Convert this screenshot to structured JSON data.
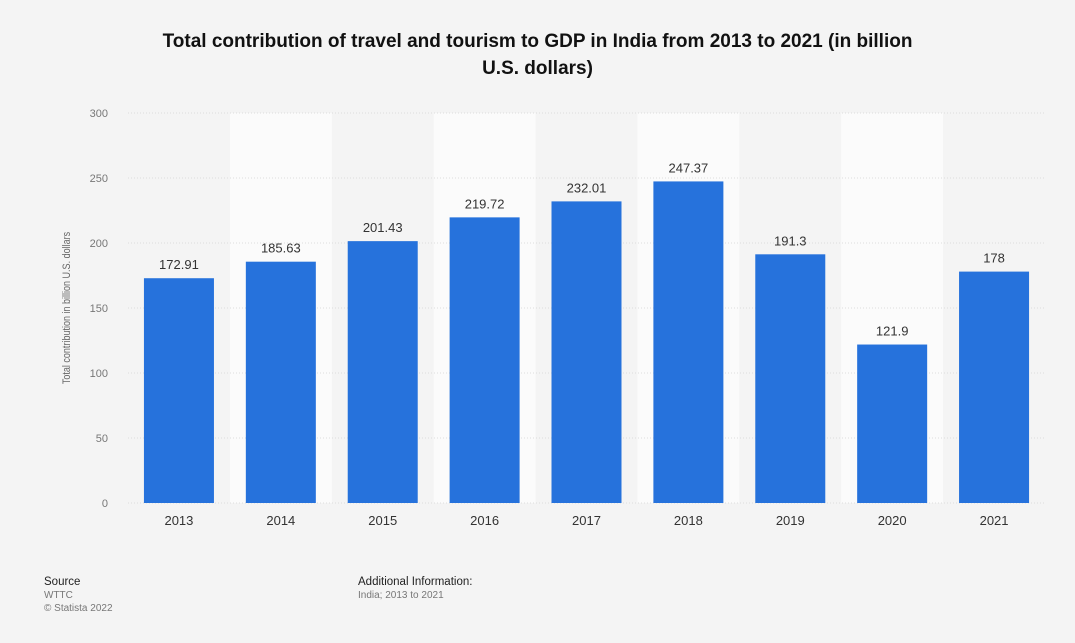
{
  "title_line1": "Total contribution of travel and tourism to GDP in India from 2013 to 2021 (in billion",
  "title_line2": "U.S. dollars)",
  "footer": {
    "source_heading": "Source",
    "source_name": "WTTC",
    "copyright": "© Statista 2022",
    "additional_heading": "Additional Information:",
    "additional_text": "India; 2013 to 2021"
  },
  "colors": {
    "bar": "#2672dc",
    "band": "#fbfbfb",
    "grid": "#dcdcdc"
  },
  "chart_data": {
    "type": "bar",
    "categories": [
      "2013",
      "2014",
      "2015",
      "2016",
      "2017",
      "2018",
      "2019",
      "2020",
      "2021"
    ],
    "values": [
      172.91,
      185.63,
      201.43,
      219.72,
      232.01,
      247.37,
      191.3,
      121.9,
      178
    ],
    "value_labels": [
      "172.91",
      "185.63",
      "201.43",
      "219.72",
      "232.01",
      "247.37",
      "191.3",
      "121.9",
      "178"
    ],
    "ylabel": "Total contribution in billion U.S. dollars",
    "ylim": [
      0,
      300
    ],
    "yticks": [
      0,
      50,
      100,
      150,
      200,
      250,
      300
    ],
    "grid": true,
    "legend": "none"
  }
}
